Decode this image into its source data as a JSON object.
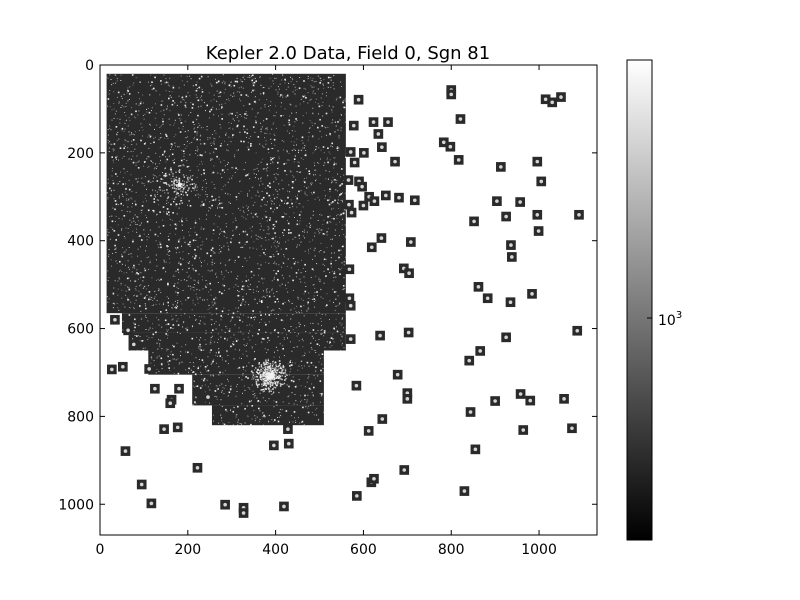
{
  "chart_data": {
    "type": "heatmap",
    "title": "Kepler 2.0 Data, Field 0, Sgn 81",
    "xlabel": "",
    "ylabel": "",
    "xlim": [
      0,
      1132
    ],
    "ylim": [
      1070,
      0
    ],
    "x_ticks": [
      0,
      200,
      400,
      600,
      800,
      1000
    ],
    "y_ticks": [
      0,
      200,
      400,
      600,
      800,
      1000
    ],
    "x_tick_labels": [
      "0",
      "200",
      "400",
      "600",
      "800",
      "1000"
    ],
    "y_tick_labels": [
      "0",
      "200",
      "400",
      "600",
      "800",
      "1000"
    ],
    "colormap": "gray",
    "colorbar": {
      "scale": "log",
      "tick_value": 1000,
      "tick_base": "10",
      "tick_exponent": "3"
    },
    "background_color": "#ffffff",
    "field_color": "#2a2a2a",
    "star_color": "#f2f2f2",
    "cluster_centers": [
      {
        "x": 180,
        "y": 270
      },
      {
        "x": 385,
        "y": 705
      }
    ],
    "main_regions": [
      {
        "x0": 15,
        "y0": 20,
        "x1": 560,
        "y1": 565
      },
      {
        "x0": 50,
        "y0": 565,
        "x1": 560,
        "y1": 610
      },
      {
        "x0": 65,
        "y0": 610,
        "x1": 560,
        "y1": 650
      },
      {
        "x0": 110,
        "y0": 650,
        "x1": 510,
        "y1": 705
      },
      {
        "x0": 210,
        "y0": 705,
        "x1": 510,
        "y1": 775
      },
      {
        "x0": 255,
        "y0": 775,
        "x1": 510,
        "y1": 820
      }
    ],
    "postage_stamps": [
      [
        589,
        79
      ],
      [
        800,
        57
      ],
      [
        800,
        67
      ],
      [
        1015,
        78
      ],
      [
        1030,
        85
      ],
      [
        1050,
        73
      ],
      [
        578,
        138
      ],
      [
        623,
        130
      ],
      [
        656,
        130
      ],
      [
        634,
        157
      ],
      [
        642,
        187
      ],
      [
        601,
        200
      ],
      [
        571,
        198
      ],
      [
        580,
        222
      ],
      [
        672,
        220
      ],
      [
        783,
        176
      ],
      [
        798,
        186
      ],
      [
        817,
        216
      ],
      [
        821,
        123
      ],
      [
        913,
        232
      ],
      [
        996,
        220
      ],
      [
        1005,
        265
      ],
      [
        566,
        262
      ],
      [
        590,
        265
      ],
      [
        597,
        277
      ],
      [
        567,
        318
      ],
      [
        613,
        300
      ],
      [
        625,
        310
      ],
      [
        651,
        297
      ],
      [
        681,
        302
      ],
      [
        717,
        308
      ],
      [
        573,
        336
      ],
      [
        600,
        320
      ],
      [
        904,
        310
      ],
      [
        852,
        356
      ],
      [
        925,
        345
      ],
      [
        957,
        312
      ],
      [
        996,
        341
      ],
      [
        1091,
        341
      ],
      [
        641,
        394
      ],
      [
        708,
        403
      ],
      [
        619,
        415
      ],
      [
        936,
        410
      ],
      [
        999,
        378
      ],
      [
        938,
        437
      ],
      [
        568,
        465
      ],
      [
        692,
        463
      ],
      [
        704,
        474
      ],
      [
        862,
        505
      ],
      [
        883,
        531
      ],
      [
        935,
        540
      ],
      [
        984,
        521
      ],
      [
        568,
        531
      ],
      [
        571,
        548
      ],
      [
        34,
        580
      ],
      [
        64,
        604
      ],
      [
        77,
        636
      ],
      [
        52,
        687
      ],
      [
        27,
        693
      ],
      [
        112,
        692
      ],
      [
        703,
        609
      ],
      [
        638,
        616
      ],
      [
        571,
        624
      ],
      [
        925,
        620
      ],
      [
        1087,
        605
      ],
      [
        841,
        673
      ],
      [
        866,
        651
      ],
      [
        678,
        705
      ],
      [
        584,
        730
      ],
      [
        700,
        747
      ],
      [
        700,
        760
      ],
      [
        125,
        737
      ],
      [
        180,
        737
      ],
      [
        163,
        762
      ],
      [
        160,
        770
      ],
      [
        246,
        756
      ],
      [
        900,
        765
      ],
      [
        844,
        790
      ],
      [
        958,
        749
      ],
      [
        980,
        764
      ],
      [
        1057,
        760
      ],
      [
        643,
        806
      ],
      [
        177,
        825
      ],
      [
        146,
        829
      ],
      [
        428,
        829
      ],
      [
        612,
        833
      ],
      [
        396,
        866
      ],
      [
        430,
        862
      ],
      [
        964,
        831
      ],
      [
        1075,
        827
      ],
      [
        58,
        879
      ],
      [
        855,
        875
      ],
      [
        222,
        917
      ],
      [
        693,
        922
      ],
      [
        95,
        955
      ],
      [
        618,
        950
      ],
      [
        624,
        942
      ],
      [
        585,
        981
      ],
      [
        830,
        970
      ],
      [
        117,
        998
      ],
      [
        285,
        1001
      ],
      [
        327,
        1008
      ],
      [
        327,
        1020
      ],
      [
        419,
        1005
      ]
    ]
  }
}
